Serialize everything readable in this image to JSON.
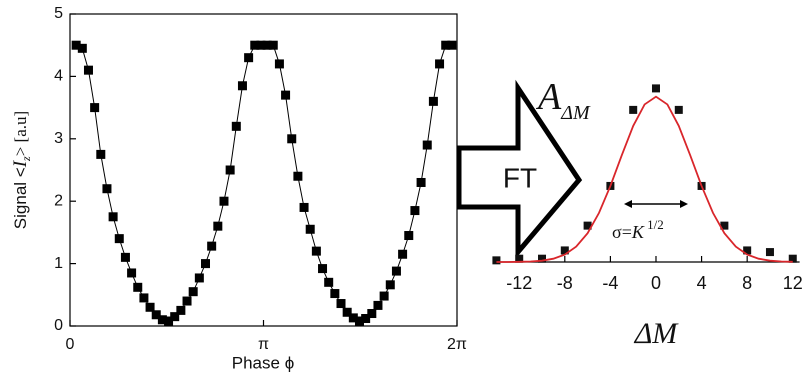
{
  "chart_data": [
    {
      "type": "line",
      "x_label": "Phase ϕ",
      "y_label": {
        "start": "Signal <",
        "var": "I",
        "sub": "z",
        "end": "> [a.u]"
      },
      "xlim": [
        0,
        6.28318
      ],
      "ylim": [
        0,
        5
      ],
      "xticks": [
        0,
        {
          "value": 3.14159,
          "label": "π"
        },
        {
          "value": 6.28318,
          "label": "2π"
        }
      ],
      "yticks": [
        0,
        1,
        2,
        3,
        4,
        5
      ],
      "series": [
        {
          "color": "#000000",
          "mode": "lines+markers",
          "x": [
            0.1,
            0.2,
            0.3,
            0.4,
            0.5,
            0.6,
            0.7,
            0.8,
            0.9,
            1.0,
            1.1,
            1.2,
            1.3,
            1.4,
            1.5,
            1.6,
            1.7,
            1.8,
            1.9,
            2.0,
            2.1,
            2.2,
            2.3,
            2.4,
            2.5,
            2.6,
            2.7,
            2.8,
            2.9,
            3.0,
            3.1,
            3.2,
            3.3,
            3.4,
            3.5,
            3.6,
            3.7,
            3.8,
            3.9,
            4.0,
            4.1,
            4.2,
            4.3,
            4.4,
            4.5,
            4.6,
            4.7,
            4.8,
            4.9,
            5.0,
            5.1,
            5.2,
            5.3,
            5.4,
            5.5,
            5.6,
            5.7,
            5.8,
            5.9,
            6.0,
            6.1,
            6.2
          ],
          "values": [
            4.5,
            4.45,
            4.1,
            3.5,
            2.75,
            2.2,
            1.75,
            1.4,
            1.1,
            0.85,
            0.62,
            0.45,
            0.3,
            0.18,
            0.1,
            0.08,
            0.15,
            0.25,
            0.4,
            0.55,
            0.77,
            1.0,
            1.28,
            1.6,
            2.0,
            2.5,
            3.2,
            3.85,
            4.3,
            4.5,
            4.5,
            4.5,
            4.5,
            4.2,
            3.7,
            3.0,
            2.4,
            1.9,
            1.55,
            1.2,
            0.92,
            0.7,
            0.52,
            0.36,
            0.22,
            0.13,
            0.08,
            0.12,
            0.2,
            0.33,
            0.48,
            0.66,
            0.88,
            1.15,
            1.45,
            1.85,
            2.3,
            2.9,
            3.6,
            4.2,
            4.5,
            4.5
          ]
        }
      ]
    },
    {
      "type": "scatter",
      "x_label": "ΔM",
      "annotations": {
        "amplitude": "A",
        "amplitude_sub": "ΔM",
        "width": "σ=",
        "width_var": "K",
        "width_exp": " 1/2",
        "transform": "FT"
      },
      "xlim": [
        -13.8,
        12.6
      ],
      "ylim": [
        0,
        1.5
      ],
      "xticks": [
        -12,
        -8,
        -4,
        0,
        4,
        8,
        12
      ],
      "series": [
        {
          "color": "#111111",
          "mode": "markers",
          "x": [
            -14,
            -12,
            -10,
            -8,
            -6,
            -4,
            -2,
            0,
            2,
            4,
            6,
            8,
            10,
            12
          ],
          "values": [
            0.01,
            0.02,
            0.02,
            0.07,
            0.22,
            0.46,
            0.92,
            1.05,
            0.92,
            0.46,
            0.22,
            0.07,
            0.06,
            0.02
          ]
        },
        {
          "color": "#d9262b",
          "mode": "lines",
          "x": [
            -14,
            -13,
            -12,
            -11,
            -10,
            -9,
            -8,
            -7,
            -6,
            -5,
            -4,
            -3,
            -2,
            -1,
            0,
            1,
            2,
            3,
            4,
            5,
            6,
            7,
            8,
            9,
            10,
            11,
            12
          ],
          "values": [
            0,
            0,
            0.001,
            0.003,
            0.008,
            0.02,
            0.045,
            0.093,
            0.174,
            0.297,
            0.46,
            0.646,
            0.823,
            0.953,
            1,
            0.953,
            0.823,
            0.646,
            0.46,
            0.297,
            0.174,
            0.093,
            0.045,
            0.02,
            0.008,
            0.003,
            0.001
          ]
        }
      ]
    }
  ]
}
